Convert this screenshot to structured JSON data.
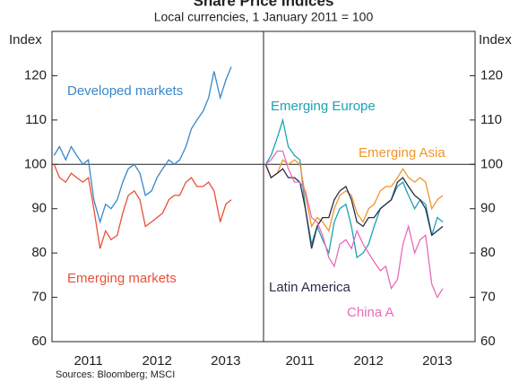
{
  "title": "Share Price Indices",
  "subtitle": "Local currencies, 1 January 2011 = 100",
  "source": "Sources: Bloomberg; MSCI",
  "chart_data": [
    {
      "type": "line",
      "ylabel": "Index",
      "ylim": [
        60,
        130
      ],
      "yticks": [
        60,
        70,
        80,
        90,
        100,
        110,
        120
      ],
      "xlim": [
        2010.97,
        2014.05
      ],
      "xticks": [
        {
          "value": 2011.5,
          "label": "2011"
        },
        {
          "value": 2012.5,
          "label": "2012"
        },
        {
          "value": 2013.5,
          "label": "2013"
        }
      ],
      "hline": 100,
      "x": [
        2011.0,
        2011.08,
        2011.17,
        2011.25,
        2011.33,
        2011.42,
        2011.5,
        2011.58,
        2011.67,
        2011.75,
        2011.83,
        2011.92,
        2012.0,
        2012.08,
        2012.17,
        2012.25,
        2012.33,
        2012.42,
        2012.5,
        2012.58,
        2012.67,
        2012.75,
        2012.83,
        2012.92,
        2013.0,
        2013.08,
        2013.17,
        2013.25,
        2013.33,
        2013.42,
        2013.5,
        2013.58
      ],
      "series": [
        {
          "name": "Developed markets",
          "color": "#3a87c8",
          "values": [
            102,
            104,
            101,
            104,
            102,
            100,
            101,
            92,
            87,
            91,
            90,
            92,
            96,
            99,
            100,
            98,
            93,
            94,
            97,
            99,
            101,
            100,
            101,
            104,
            108,
            110,
            112,
            115,
            121,
            115,
            119,
            122
          ]
        },
        {
          "name": "Emerging markets",
          "color": "#e8503a",
          "values": [
            100,
            97,
            96,
            98,
            97,
            96,
            97,
            90,
            81,
            85,
            83,
            84,
            89,
            93,
            94,
            92,
            86,
            87,
            88,
            89,
            92,
            93,
            93,
            96,
            97,
            95,
            95,
            96,
            94,
            87,
            91,
            92
          ]
        }
      ]
    },
    {
      "type": "line",
      "ylabel": "Index",
      "ylim": [
        60,
        130
      ],
      "yticks": [
        60,
        70,
        80,
        90,
        100,
        110,
        120
      ],
      "xlim": [
        2010.97,
        2014.05
      ],
      "xticks": [
        {
          "value": 2011.5,
          "label": "2011"
        },
        {
          "value": 2012.5,
          "label": "2012"
        },
        {
          "value": 2013.5,
          "label": "2013"
        }
      ],
      "hline": 100,
      "x": [
        2011.0,
        2011.08,
        2011.17,
        2011.25,
        2011.33,
        2011.42,
        2011.5,
        2011.58,
        2011.67,
        2011.75,
        2011.83,
        2011.92,
        2012.0,
        2012.08,
        2012.17,
        2012.25,
        2012.33,
        2012.42,
        2012.5,
        2012.58,
        2012.67,
        2012.75,
        2012.83,
        2012.92,
        2013.0,
        2013.08,
        2013.17,
        2013.25,
        2013.33,
        2013.42,
        2013.5,
        2013.58
      ],
      "series": [
        {
          "name": "Emerging Europe",
          "color": "#1aa3b5",
          "values": [
            100,
            102,
            106,
            110,
            104,
            102,
            101,
            90,
            82,
            86,
            83,
            80,
            87,
            90,
            91,
            86,
            79,
            80,
            82,
            86,
            90,
            91,
            92,
            95,
            96,
            93,
            90,
            92,
            91,
            84,
            88,
            87
          ]
        },
        {
          "name": "Emerging Asia",
          "color": "#f0962a",
          "values": [
            100,
            97,
            98,
            101,
            100,
            101,
            100,
            93,
            86,
            88,
            87,
            85,
            90,
            93,
            94,
            93,
            89,
            87,
            90,
            91,
            94,
            95,
            95,
            97,
            99,
            97,
            96,
            97,
            96,
            90,
            92,
            93
          ]
        },
        {
          "name": "Latin America",
          "color": "#2b2a4a",
          "values": [
            100,
            97,
            98,
            99,
            97,
            97,
            96,
            90,
            81,
            86,
            88,
            88,
            92,
            94,
            95,
            92,
            87,
            86,
            88,
            88,
            90,
            91,
            92,
            96,
            97,
            95,
            93,
            92,
            90,
            84,
            85,
            86
          ]
        },
        {
          "name": "China A",
          "color": "#e66cb8",
          "values": [
            100,
            101,
            103,
            103,
            99,
            96,
            96,
            94,
            88,
            87,
            84,
            79,
            77,
            82,
            83,
            81,
            85,
            82,
            80,
            78,
            76,
            77,
            72,
            74,
            82,
            86,
            80,
            83,
            84,
            73,
            70,
            72
          ]
        }
      ]
    }
  ]
}
